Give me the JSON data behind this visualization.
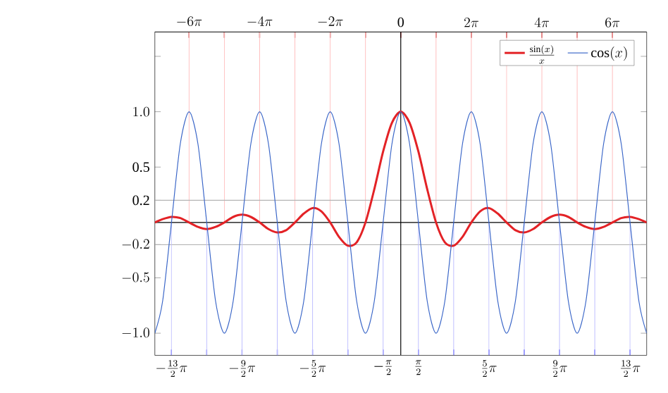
{
  "chart_data": {
    "type": "line",
    "x": [
      -21.9,
      -21.206,
      -20.42,
      -19.635,
      -18.85,
      -18.064,
      -17.279,
      -16.493,
      -15.708,
      -14.923,
      -14.137,
      -13.352,
      -12.566,
      -11.781,
      -10.996,
      -10.21,
      -9.425,
      -8.639,
      -7.854,
      -7.069,
      -6.283,
      -5.498,
      -4.712,
      -3.927,
      -3.142,
      -2.356,
      -1.571,
      -0.785,
      0,
      0.785,
      1.571,
      2.356,
      3.142,
      3.927,
      4.712,
      5.498,
      6.283,
      7.069,
      7.854,
      8.639,
      9.425,
      10.21,
      10.996,
      11.781,
      12.566,
      13.352,
      14.137,
      14.923,
      15.708,
      16.493,
      17.279,
      18.064,
      18.85,
      19.635,
      20.42,
      21.206,
      21.9
    ],
    "series": [
      {
        "name": "\\frac{\\sin(x)}{x}",
        "color": "#e32226",
        "values": [
          0,
          0.03,
          0.05,
          0.04,
          0,
          -0.04,
          -0.06,
          -0.04,
          0,
          0.05,
          0.07,
          0.05,
          0,
          -0.06,
          -0.09,
          -0.07,
          0,
          0.08,
          0.13,
          0.1,
          0,
          -0.13,
          -0.21,
          -0.18,
          0,
          0.3,
          0.64,
          0.9,
          1,
          0.9,
          0.64,
          0.3,
          0,
          -0.18,
          -0.21,
          -0.13,
          0,
          0.1,
          0.13,
          0.08,
          0,
          -0.07,
          -0.09,
          -0.06,
          0,
          0.05,
          0.07,
          0.05,
          0,
          -0.04,
          -0.06,
          -0.04,
          0,
          0.04,
          0.05,
          0.03,
          0
        ]
      },
      {
        "name": "\\cos(x)",
        "color": "#3a66c8",
        "values": [
          -1,
          -0.71,
          0,
          0.71,
          1,
          0.71,
          0,
          -0.71,
          -1,
          -0.71,
          0,
          0.71,
          1,
          0.71,
          0,
          -0.71,
          -1,
          -0.71,
          0,
          0.71,
          1,
          0.71,
          0,
          -0.71,
          -1,
          -0.71,
          0,
          0.71,
          1,
          0.71,
          0,
          -0.71,
          -1,
          -0.71,
          0,
          0.71,
          1,
          0.71,
          0,
          -0.71,
          -1,
          -0.71,
          0,
          0.71,
          1,
          0.71,
          0,
          -0.71,
          -1,
          -0.71,
          0,
          0.71,
          1,
          0.71,
          0,
          -0.71,
          -1
        ]
      }
    ],
    "xlim": [
      -21.9,
      21.9
    ],
    "ylim": [
      -1.2,
      1.72
    ],
    "xticks": [
      {
        "value": -20.42,
        "label": "-\\frac{13}{2}\\pi"
      },
      {
        "value": -17.279,
        "label": null
      },
      {
        "value": -14.137,
        "label": "-\\frac{9}{2}\\pi"
      },
      {
        "value": -10.996,
        "label": null
      },
      {
        "value": -7.854,
        "label": "-\\frac{5}{2}\\pi"
      },
      {
        "value": -4.712,
        "label": null
      },
      {
        "value": -1.571,
        "label": "-\\frac{\\pi}{2}"
      },
      {
        "value": 1.571,
        "label": "\\frac{\\pi}{2}"
      },
      {
        "value": 4.712,
        "label": null
      },
      {
        "value": 7.854,
        "label": "\\frac{5}{2}\\pi"
      },
      {
        "value": 10.996,
        "label": null
      },
      {
        "value": 14.137,
        "label": "\\frac{9}{2}\\pi"
      },
      {
        "value": 17.279,
        "label": null
      },
      {
        "value": 20.42,
        "label": "\\frac{13}{2}\\pi"
      }
    ],
    "x2lim": [
      -6.97,
      6.97
    ],
    "x2ticks": [
      {
        "value": -6,
        "label": "-6\\pi"
      },
      {
        "value": -5,
        "label": null
      },
      {
        "value": -4,
        "label": "-4\\pi"
      },
      {
        "value": -3,
        "label": null
      },
      {
        "value": -2,
        "label": "-2\\pi"
      },
      {
        "value": -1,
        "label": null
      },
      0,
      {
        "value": 1,
        "label": null
      },
      {
        "value": 2,
        "label": "2\\pi"
      },
      {
        "value": 3,
        "label": null
      },
      {
        "value": 4,
        "label": "4\\pi"
      },
      {
        "value": 5,
        "label": null
      },
      {
        "value": 6,
        "label": "6\\pi"
      }
    ],
    "yticks": [
      {
        "value": -1,
        "label": "-1.0"
      },
      {
        "value": -0.5,
        "label": "-0.5"
      },
      {
        "value": -0.2,
        "label": "-0.2"
      },
      0.2,
      0.5,
      {
        "value": 1,
        "label": "1.0"
      },
      {
        "value": 1.5,
        "label": null
      }
    ],
    "ref_lines": [
      {
        "axis": "y",
        "value": 0.2,
        "color": "#b4b4b4"
      },
      {
        "axis": "y",
        "value": -0.2,
        "color": "#b4b4b4"
      },
      {
        "axis": "x2",
        "value": -6,
        "color": "#ffbfbf"
      },
      {
        "axis": "x2",
        "value": -5,
        "color": "#ffbfbf"
      },
      {
        "axis": "x2",
        "value": -4,
        "color": "#ffbfbf"
      },
      {
        "axis": "x2",
        "value": -3,
        "color": "#ffbfbf"
      },
      {
        "axis": "x2",
        "value": -2,
        "color": "#ffbfbf"
      },
      {
        "axis": "x2",
        "value": -1,
        "color": "#ffbfbf"
      },
      {
        "axis": "x2",
        "value": 1,
        "color": "#ffbfbf"
      },
      {
        "axis": "x2",
        "value": 2,
        "color": "#ffbfbf"
      },
      {
        "axis": "x2",
        "value": 3,
        "color": "#ffbfbf"
      },
      {
        "axis": "x2",
        "value": 4,
        "color": "#ffbfbf"
      },
      {
        "axis": "x2",
        "value": 5,
        "color": "#ffbfbf"
      },
      {
        "axis": "x2",
        "value": 6,
        "color": "#ffbfbf"
      },
      {
        "axis": "x",
        "value": -20.42,
        "color": "#bfbfff"
      },
      {
        "axis": "x",
        "value": -17.279,
        "color": "#bfbfff"
      },
      {
        "axis": "x",
        "value": -14.137,
        "color": "#bfbfff"
      },
      {
        "axis": "x",
        "value": -10.996,
        "color": "#bfbfff"
      },
      {
        "axis": "x",
        "value": -7.854,
        "color": "#bfbfff"
      },
      {
        "axis": "x",
        "value": -4.712,
        "color": "#bfbfff"
      },
      {
        "axis": "x",
        "value": -1.571,
        "color": "#bfbfff"
      },
      {
        "axis": "x",
        "value": 1.571,
        "color": "#bfbfff"
      },
      {
        "axis": "x",
        "value": 4.712,
        "color": "#bfbfff"
      },
      {
        "axis": "x",
        "value": 7.854,
        "color": "#bfbfff"
      },
      {
        "axis": "x",
        "value": 10.996,
        "color": "#bfbfff"
      },
      {
        "axis": "x",
        "value": 14.137,
        "color": "#bfbfff"
      },
      {
        "axis": "x",
        "value": 17.279,
        "color": "#bfbfff"
      },
      {
        "axis": "x",
        "value": 20.42,
        "color": "#bfbfff"
      }
    ],
    "legend": "top right",
    "marker": "none",
    "line_style": "solid"
  }
}
